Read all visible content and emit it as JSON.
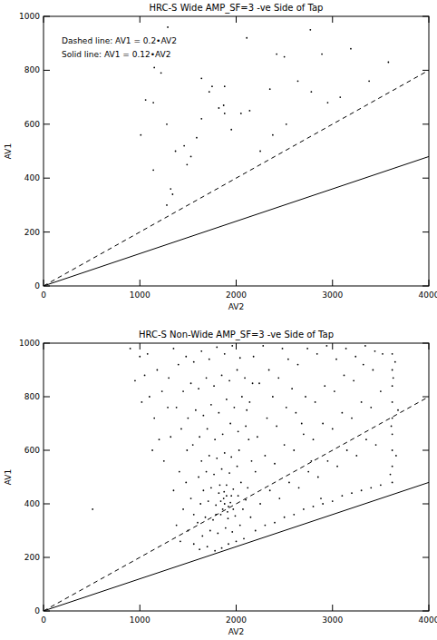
{
  "chart_data": [
    {
      "type": "scatter",
      "title": "HRC-S Wide AMP_SF=3 -ve Side of Tap",
      "x_label": "AV2",
      "y_label": "AV1",
      "annotations": [
        "Dashed line: AV1 = 0.2•AV2",
        "Solid line: AV1 = 0.12•AV2"
      ],
      "xlim": [
        0,
        4000
      ],
      "ylim": [
        0,
        1000
      ],
      "xticks": [
        0,
        1000,
        2000,
        3000,
        4000
      ],
      "yticks": [
        0,
        200,
        400,
        600,
        800,
        1000
      ],
      "series": [
        {
          "type": "scatter",
          "marker": "dot",
          "color": "#000000",
          "x": [
            1290,
            2770,
            2110,
            3190,
            2500,
            2420,
            1150,
            1220,
            1640,
            1750,
            1880,
            3380,
            2780,
            3080,
            1060,
            2350,
            1140,
            1870,
            1820,
            2140,
            1640,
            1880,
            1280,
            2520,
            1010,
            1590,
            1370,
            1490,
            1140,
            2250,
            1950,
            1280,
            1340,
            2890,
            3580,
            2050,
            2380,
            1530,
            1720,
            2640,
            1460,
            1320,
            2950
          ],
          "values": [
            960,
            950,
            920,
            880,
            850,
            860,
            810,
            790,
            770,
            740,
            740,
            760,
            720,
            700,
            690,
            730,
            680,
            670,
            660,
            650,
            620,
            640,
            600,
            600,
            560,
            550,
            500,
            450,
            430,
            500,
            580,
            300,
            340,
            860,
            830,
            640,
            560,
            480,
            720,
            760,
            520,
            360,
            680
          ]
        },
        {
          "type": "line",
          "line_style": "dashed",
          "color": "#000000",
          "x": [
            0,
            4000
          ],
          "values": [
            0,
            800
          ]
        },
        {
          "type": "line",
          "line_style": "solid",
          "color": "#000000",
          "x": [
            0,
            4000
          ],
          "values": [
            0,
            480
          ]
        }
      ]
    },
    {
      "type": "scatter",
      "title": "HRC-S Non-Wide AMP_SF=3 -ve Side of Tap",
      "x_label": "AV2",
      "y_label": "AV1",
      "xlim": [
        0,
        4000
      ],
      "ylim": [
        0,
        1000
      ],
      "xticks": [
        0,
        1000,
        2000,
        3000,
        4000
      ],
      "yticks": [
        0,
        200,
        400,
        600,
        800,
        1000
      ],
      "series": [
        {
          "type": "scatter",
          "marker": "dot",
          "color": "#000000",
          "x": [
            1620,
            1700,
            1780,
            1850,
            1920,
            2000,
            2080,
            1650,
            1730,
            1810,
            1890,
            1960,
            2040,
            1600,
            1680,
            1760,
            1840,
            1910,
            1990,
            2070,
            1630,
            1710,
            1790,
            1870,
            1940,
            2020,
            2100,
            1660,
            1740,
            1820,
            1900,
            1970,
            2050,
            1610,
            1690,
            1770,
            1850,
            1930,
            2010,
            1640,
            1720,
            1800,
            1880,
            1950,
            2030,
            1860,
            1880,
            1900,
            1920,
            1840,
            1950,
            1830,
            1790,
            1970,
            1915,
            1875,
            1550,
            1620,
            1700,
            1780,
            1860,
            1940,
            2020,
            2100,
            1500,
            1580,
            1660,
            1740,
            1820,
            1900,
            1980,
            2060,
            2140,
            1450,
            1530,
            1610,
            1690,
            1770,
            1850,
            1930,
            2010,
            2090,
            1400,
            1480,
            1560,
            1640,
            1720,
            1800,
            1880,
            1960,
            2040,
            1350,
            1300,
            1380,
            1430,
            1490,
            1420,
            1500,
            1560,
            1380,
            1450,
            1530,
            1350,
            1410,
            1480,
            1560,
            1250,
            1200,
            1150,
            1100,
            1050,
            1000,
            1180,
            1230,
            1290,
            1320,
            900,
            950,
            1020,
            510,
            1080,
            1130,
            2200,
            2300,
            2400,
            2500,
            2600,
            2700,
            2800,
            2900,
            3000,
            3100,
            3200,
            3300,
            3400,
            3500,
            2250,
            2350,
            2450,
            2550,
            2650,
            2750,
            2850,
            2950,
            3050,
            3150,
            3250,
            3350,
            3450,
            2200,
            2300,
            2400,
            2500,
            2600,
            2700,
            2800,
            2900,
            3000,
            3100,
            3200,
            3300,
            3400,
            3500,
            2220,
            2320,
            2420,
            2520,
            2620,
            2720,
            2820,
            2920,
            3020,
            3120,
            3220,
            3320,
            3420,
            3520,
            2240,
            2340,
            2440,
            2540,
            2640,
            2740,
            2840,
            2940,
            3040,
            3140,
            3240,
            3340,
            3440,
            2180,
            2280,
            2380,
            2480,
            2580,
            2680,
            2780,
            2880,
            3620,
            3620,
            3620,
            3620,
            3620,
            3620,
            3620,
            3620,
            3620,
            3600,
            3610,
            3630,
            3660,
            3680,
            3650,
            2150,
            2120,
            2160,
            2130,
            2110,
            2170
          ],
          "values": [
            230,
            240,
            225,
            235,
            250,
            260,
            270,
            280,
            300,
            290,
            310,
            295,
            320,
            330,
            350,
            340,
            360,
            370,
            355,
            380,
            400,
            410,
            395,
            420,
            405,
            430,
            415,
            450,
            460,
            440,
            470,
            455,
            480,
            500,
            520,
            510,
            530,
            515,
            540,
            560,
            580,
            570,
            590,
            575,
            600,
            380,
            400,
            430,
            390,
            410,
            430,
            470,
            360,
            380,
            345,
            445,
            620,
            650,
            680,
            640,
            660,
            700,
            670,
            690,
            720,
            750,
            730,
            770,
            740,
            790,
            760,
            800,
            780,
            820,
            850,
            830,
            870,
            840,
            880,
            860,
            900,
            870,
            920,
            950,
            930,
            970,
            940,
            985,
            960,
            990,
            945,
            980,
            870,
            760,
            680,
            600,
            260,
            300,
            250,
            320,
            380,
            420,
            450,
            520,
            480,
            360,
            560,
            640,
            720,
            800,
            880,
            950,
            900,
            820,
            760,
            650,
            980,
            860,
            780,
            380,
            960,
            600,
            300,
            320,
            330,
            350,
            360,
            380,
            390,
            400,
            410,
            430,
            440,
            450,
            460,
            470,
            400,
            450,
            420,
            480,
            460,
            520,
            500,
            560,
            540,
            600,
            580,
            640,
            620,
            520,
            580,
            550,
            620,
            600,
            660,
            640,
            700,
            680,
            740,
            720,
            780,
            760,
            820,
            650,
            720,
            690,
            760,
            740,
            800,
            780,
            840,
            820,
            880,
            860,
            920,
            900,
            960,
            850,
            900,
            870,
            940,
            920,
            980,
            960,
            990,
            940,
            980,
            950,
            990,
            970,
            950,
            990,
            800,
            980,
            830,
            700,
            560,
            420,
            480,
            540,
            600,
            660,
            720,
            780,
            840,
            900,
            960,
            510,
            690,
            870,
            580,
            750,
            930,
            350,
            460,
            560,
            640,
            750,
            850
          ]
        },
        {
          "type": "line",
          "line_style": "dashed",
          "color": "#000000",
          "x": [
            0,
            4000
          ],
          "values": [
            0,
            800
          ]
        },
        {
          "type": "line",
          "line_style": "solid",
          "color": "#000000",
          "x": [
            0,
            4000
          ],
          "values": [
            0,
            480
          ]
        }
      ]
    }
  ]
}
